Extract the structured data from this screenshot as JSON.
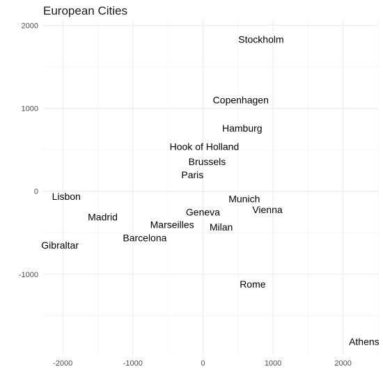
{
  "chart_data": {
    "type": "scatter",
    "title": "European Cities",
    "xlabel": "",
    "ylabel": "",
    "xlim": [
      -2280,
      2500
    ],
    "ylim": [
      -1975,
      2070
    ],
    "grid": true,
    "x_ticks": [
      -2000,
      -1000,
      0,
      1000,
      2000
    ],
    "y_ticks": [
      -1000,
      0,
      1000,
      2000
    ],
    "x_tick_labels": [
      "-2000",
      "-1000",
      "0",
      "1000",
      "2000"
    ],
    "y_tick_labels": [
      "-1000",
      "0",
      "1000",
      "2000"
    ],
    "points": [
      {
        "label": "Stockholm",
        "x": 830,
        "y": 1830
      },
      {
        "label": "Copenhagen",
        "x": 540,
        "y": 1100
      },
      {
        "label": "Hamburg",
        "x": 560,
        "y": 760
      },
      {
        "label": "Hook of Holland",
        "x": 20,
        "y": 540
      },
      {
        "label": "Brussels",
        "x": 60,
        "y": 360
      },
      {
        "label": "Paris",
        "x": -150,
        "y": 200
      },
      {
        "label": "Lisbon",
        "x": -1950,
        "y": -60
      },
      {
        "label": "Munich",
        "x": 590,
        "y": -90
      },
      {
        "label": "Vienna",
        "x": 920,
        "y": -220
      },
      {
        "label": "Geneva",
        "x": 0,
        "y": -250
      },
      {
        "label": "Madrid",
        "x": -1430,
        "y": -310
      },
      {
        "label": "Marseilles",
        "x": -440,
        "y": -400
      },
      {
        "label": "Milan",
        "x": 260,
        "y": -430
      },
      {
        "label": "Barcelona",
        "x": -830,
        "y": -560
      },
      {
        "label": "Gibraltar",
        "x": -2040,
        "y": -650
      },
      {
        "label": "Rome",
        "x": 710,
        "y": -1120
      },
      {
        "label": "Athens",
        "x": 2300,
        "y": -1810
      }
    ]
  }
}
